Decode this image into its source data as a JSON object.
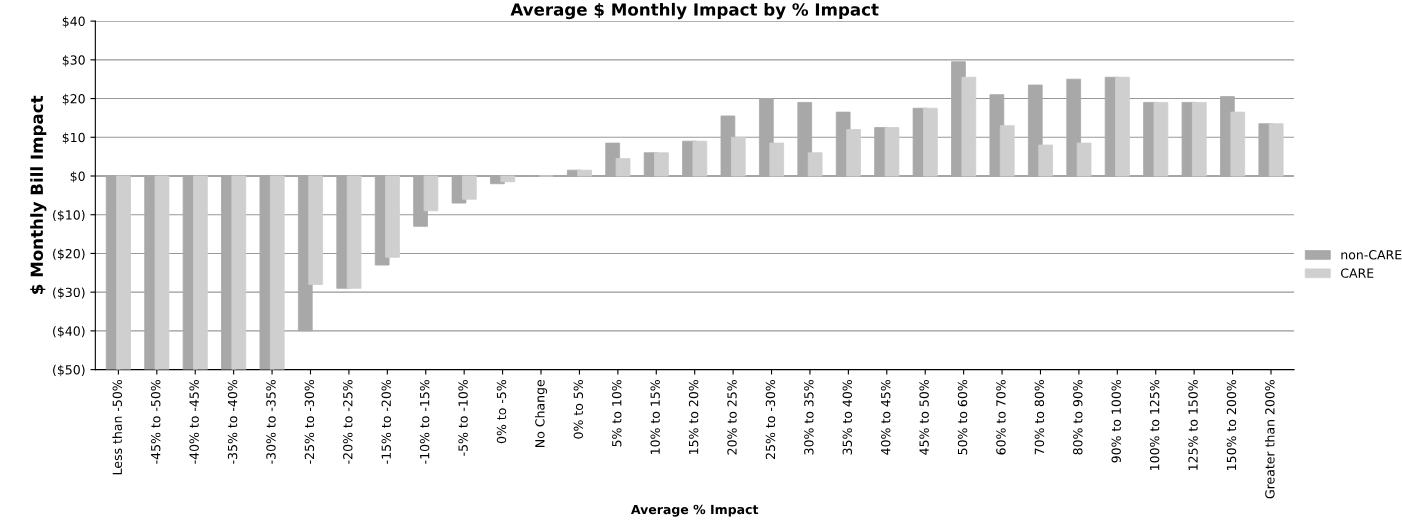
{
  "chart_data": {
    "type": "bar",
    "title": "Average $ Monthly Impact by % Impact",
    "xlabel": "Average % Impact",
    "ylabel": "$ Monthly Bill Impact",
    "categories": [
      "Less than -50%",
      "-45% to -50%",
      "-40% to -45%",
      "-35% to -40%",
      "-30% to -35%",
      "-25% to -30%",
      "-20% to -25%",
      "-15% to -20%",
      "-10% to -15%",
      "-5% to -10%",
      "0% to -5%",
      "No Change",
      "0% to 5%",
      "5% to 10%",
      "10% to 15%",
      "15% to 20%",
      "20% to 25%",
      "25% to -30%",
      "30% to 35%",
      "35% to 40%",
      "40% to 45%",
      "45% to 50%",
      "50% to 60%",
      "60% to 70%",
      "70% to 80%",
      "80% to 90%",
      "90% to 100%",
      "100% to 125%",
      "125% to 150%",
      "150% to 200%",
      "Greater than 200%"
    ],
    "series": [
      {
        "name": "non-CARE",
        "color": "#a8a8a8",
        "values": [
          -50,
          -50,
          -50,
          -50,
          -50,
          -40,
          -29,
          -23,
          -13,
          -7,
          -2,
          0,
          1.5,
          8.5,
          6,
          9,
          15.5,
          20,
          19,
          16.5,
          12.5,
          17.5,
          29.5,
          21,
          23.5,
          25,
          25.5,
          19,
          19,
          20.5,
          13.5
        ]
      },
      {
        "name": "CARE",
        "color": "#cfcfcf",
        "values": [
          -50,
          -50,
          -50,
          -50,
          -50,
          -28,
          -29,
          -21,
          -9,
          -6,
          -1.5,
          0,
          1.5,
          4.5,
          6,
          9,
          10,
          8.5,
          6,
          12,
          12.5,
          17.5,
          25.5,
          13,
          8,
          8.5,
          25.5,
          19,
          19,
          16.5,
          13.5
        ]
      }
    ],
    "ylim": [
      -50,
      40
    ],
    "yticks": [
      {
        "value": 40,
        "label": "$40"
      },
      {
        "value": 30,
        "label": "$30"
      },
      {
        "value": 20,
        "label": "$20"
      },
      {
        "value": 10,
        "label": "$10"
      },
      {
        "value": 0,
        "label": "$0"
      },
      {
        "value": -10,
        "label": "($10)"
      },
      {
        "value": -20,
        "label": "($20)"
      },
      {
        "value": -30,
        "label": "($30)"
      },
      {
        "value": -40,
        "label": "($40)"
      },
      {
        "value": -50,
        "label": "($50)"
      }
    ],
    "grid": "y",
    "legend": "right"
  }
}
